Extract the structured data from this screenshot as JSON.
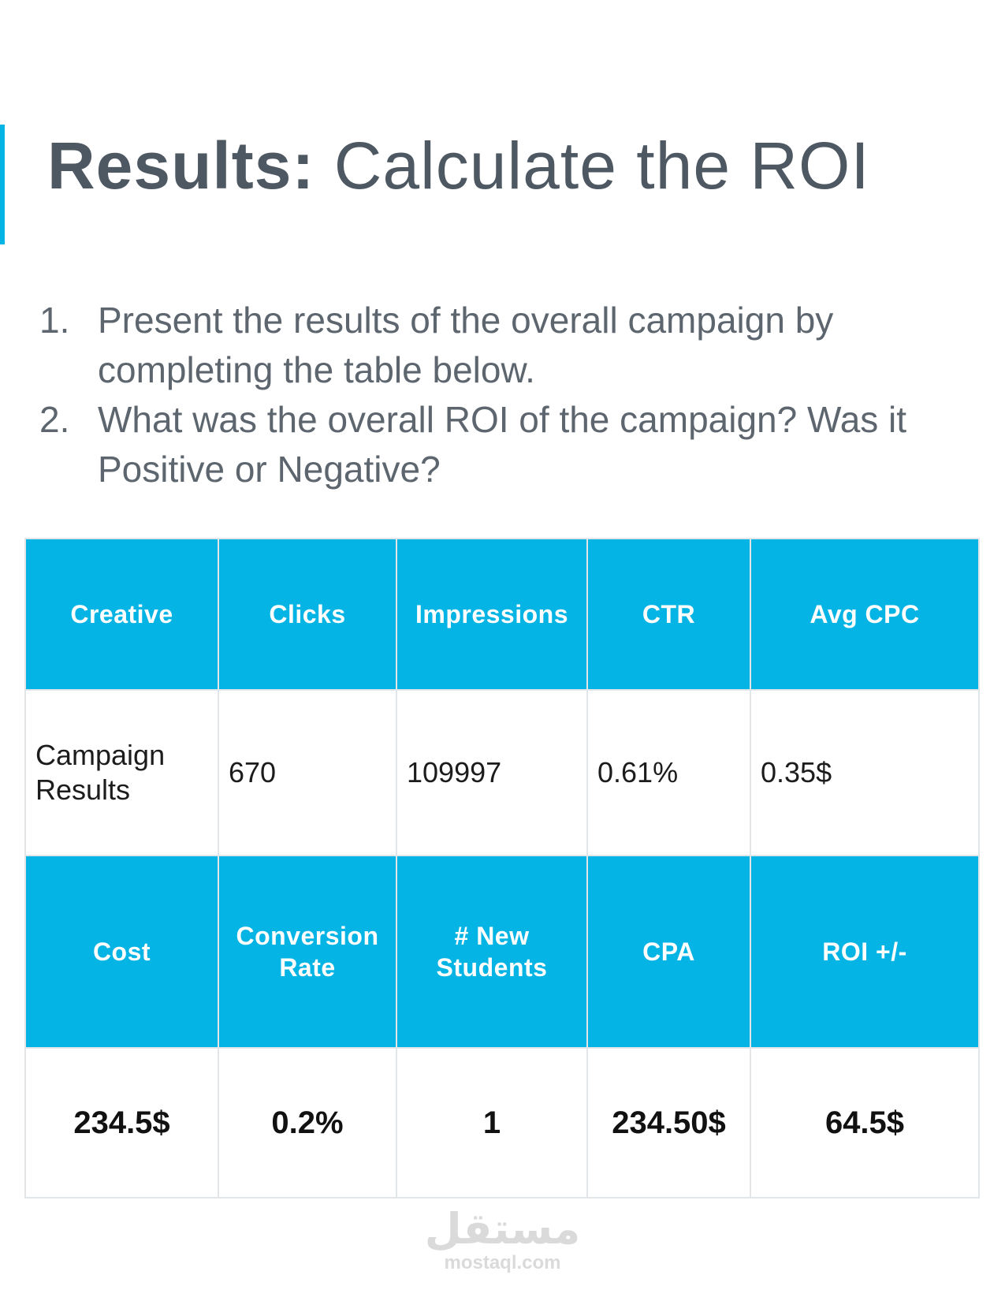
{
  "title": {
    "bold": "Results:",
    "rest": " Calculate the ROI"
  },
  "questions": [
    {
      "number": "1.",
      "text": "Present the results of the overall campaign by completing the table below."
    },
    {
      "number": "2.",
      "text": "What was the overall ROI of the campaign? Was it Positive or Negative?"
    }
  ],
  "table": {
    "header_row_1": [
      "Creative",
      "Clicks",
      "Impressions",
      "CTR",
      "Avg CPC"
    ],
    "data_row_1": [
      "Campaign Results",
      "670",
      "109997",
      "0.61%",
      "0.35$"
    ],
    "header_row_2": [
      "Cost",
      "Conversion Rate",
      "# New Students",
      "CPA",
      "ROI +/-"
    ],
    "data_row_2": [
      "234.5$",
      "0.2%",
      "1",
      "234.50$",
      "64.5$"
    ]
  },
  "watermark": {
    "logo": "مستقل",
    "url": "mostaql.com"
  },
  "colors": {
    "accent": "#04b4e4",
    "title": "#4e5862",
    "border": "#e3e6e8"
  }
}
